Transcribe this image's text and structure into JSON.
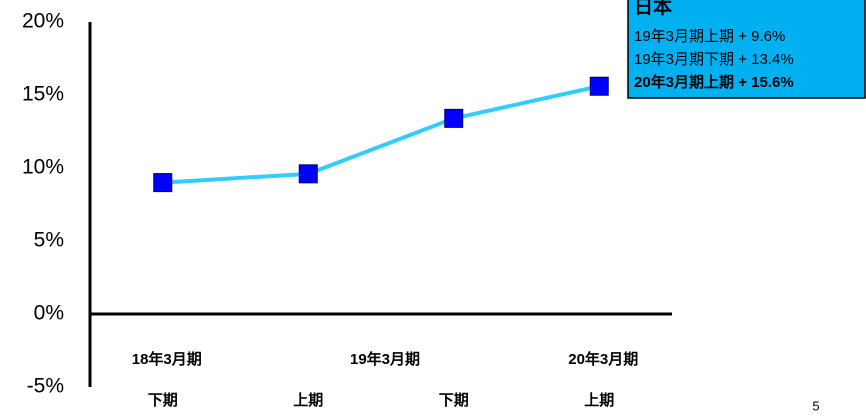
{
  "chart_data": {
    "type": "line",
    "categories": [
      "下期",
      "上期",
      "下期",
      "上期"
    ],
    "category_groups": [
      {
        "label": "18年3月期",
        "count": 1
      },
      {
        "label": "19年3月期",
        "count": 2
      },
      {
        "label": "20年3月期",
        "count": 1
      }
    ],
    "series": [
      {
        "color": "#33ccff",
        "marker_color": "#0000ff",
        "values": [
          9.0,
          9.6,
          13.4,
          15.6
        ]
      }
    ],
    "ylim": [
      -5,
      20
    ],
    "yticks": [
      {
        "value": -5,
        "label": "-5%"
      },
      {
        "value": 0,
        "label": "0%"
      },
      {
        "value": 5,
        "label": "5%"
      },
      {
        "value": 10,
        "label": "10%"
      },
      {
        "value": 15,
        "label": "15%"
      },
      {
        "value": 20,
        "label": "20%"
      }
    ],
    "annotation": {
      "title": "日本",
      "lines": [
        "19年3月期上期 + 9.6%",
        "19年3月期下期 + 13.4%",
        "20年3月期上期 + 15.6%"
      ],
      "color": "#00b0f0"
    },
    "page_number": "5"
  }
}
